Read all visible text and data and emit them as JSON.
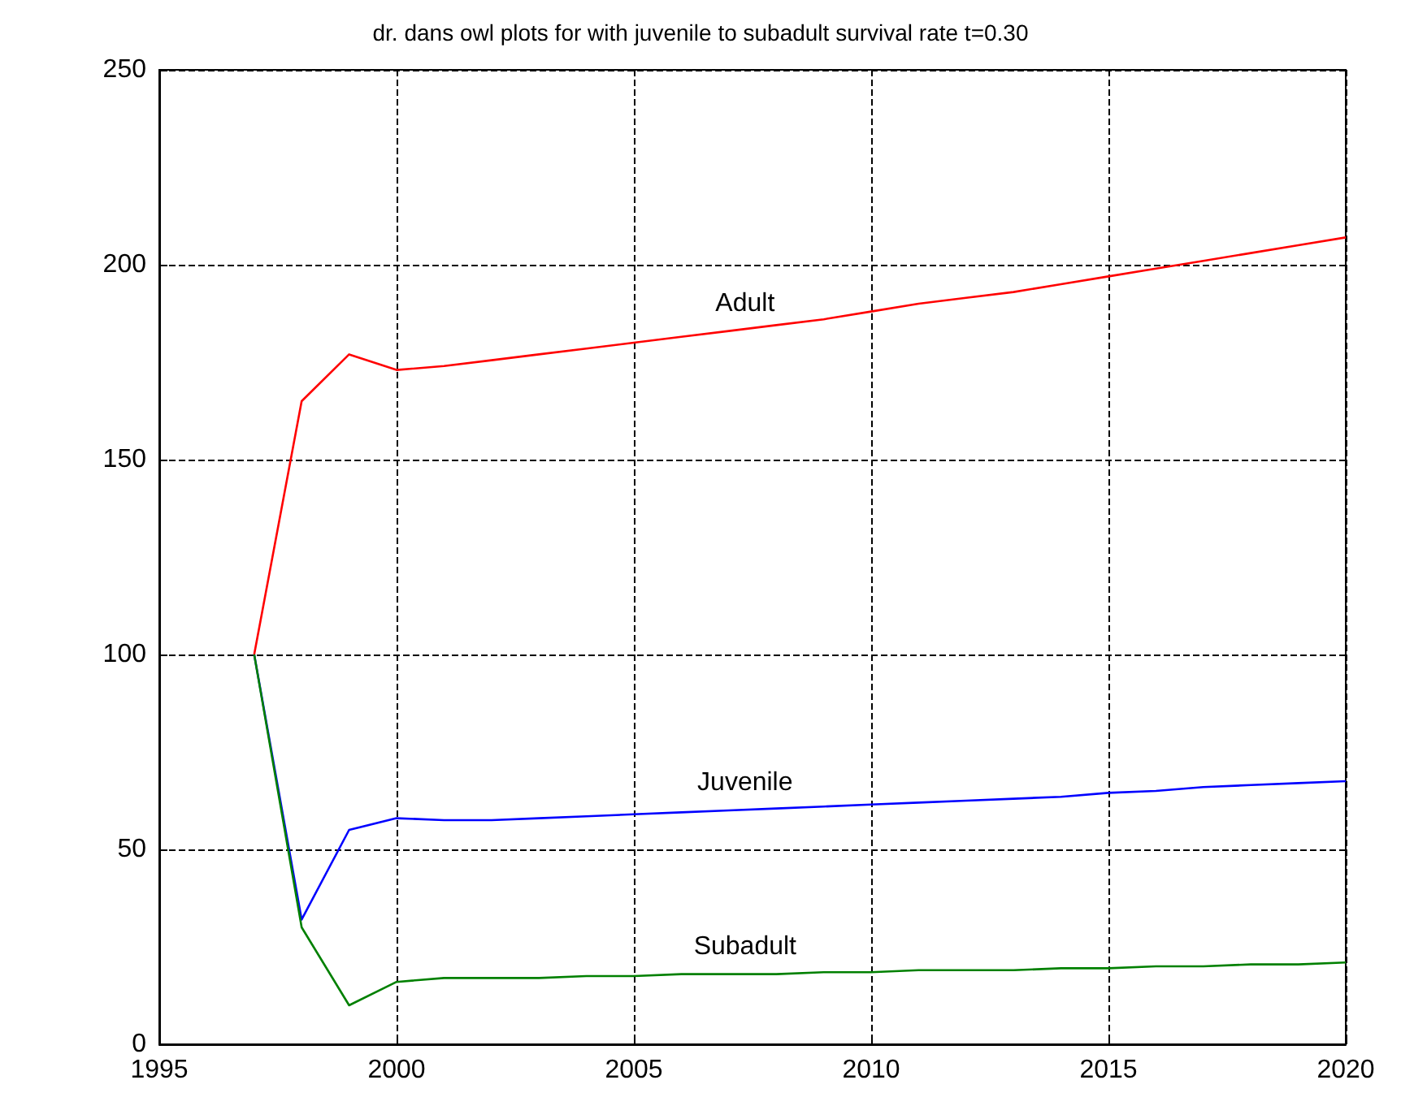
{
  "chart_data": {
    "type": "line",
    "title": "dr. dans owl plots for with juvenile to subadult survival rate t=0.30",
    "x": [
      1997,
      1998,
      1999,
      2000,
      2001,
      2002,
      2003,
      2004,
      2005,
      2006,
      2007,
      2008,
      2009,
      2010,
      2011,
      2012,
      2013,
      2014,
      2015,
      2016,
      2017,
      2018,
      2019,
      2020
    ],
    "series": [
      {
        "name": "Adult",
        "color": "#ff0000",
        "values": [
          100,
          165,
          177,
          173,
          174,
          175.5,
          177,
          178.5,
          180,
          181.5,
          183,
          184.5,
          186,
          188,
          190,
          191.5,
          193,
          195,
          197,
          199,
          201,
          203,
          205,
          207
        ]
      },
      {
        "name": "Juvenile",
        "color": "#0000ff",
        "values": [
          100,
          32,
          55,
          58,
          57.5,
          57.5,
          58,
          58.5,
          59,
          59.5,
          60,
          60.5,
          61,
          61.5,
          62,
          62.5,
          63,
          63.5,
          64.5,
          65,
          66,
          66.5,
          67,
          67.5
        ]
      },
      {
        "name": "Subadult",
        "color": "#008000",
        "values": [
          100,
          30,
          10,
          16,
          17,
          17,
          17,
          17.5,
          17.5,
          18,
          18,
          18,
          18.5,
          18.5,
          19,
          19,
          19,
          19.5,
          19.5,
          20,
          20,
          20.5,
          20.5,
          21
        ]
      }
    ],
    "xlim": [
      1995,
      2020
    ],
    "xticks": [
      1995,
      2000,
      2005,
      2010,
      2015,
      2020
    ],
    "ylim": [
      0,
      250
    ],
    "yticks": [
      0,
      50,
      100,
      150,
      200,
      250
    ],
    "grid": true,
    "marker": "none",
    "line_style": "solid",
    "legend": false
  }
}
